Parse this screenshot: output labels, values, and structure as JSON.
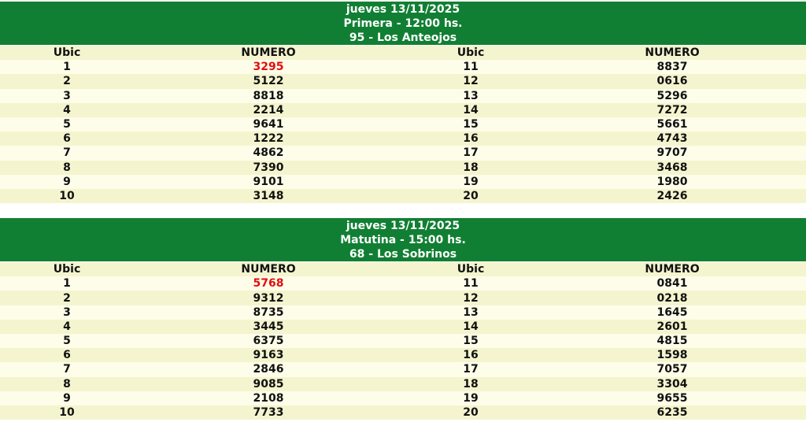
{
  "accent_color": "#117f33",
  "highlight_color": "#e01010",
  "columns": {
    "ubic": "Ubic",
    "numero": "NUMERO"
  },
  "draws": [
    {
      "date": "jueves 13/11/2025",
      "session": "Primera - 12:00 hs.",
      "head": "95 - Los Anteojos",
      "results": [
        {
          "ubic": "1",
          "numero": "3295"
        },
        {
          "ubic": "2",
          "numero": "5122"
        },
        {
          "ubic": "3",
          "numero": "8818"
        },
        {
          "ubic": "4",
          "numero": "2214"
        },
        {
          "ubic": "5",
          "numero": "9641"
        },
        {
          "ubic": "6",
          "numero": "1222"
        },
        {
          "ubic": "7",
          "numero": "4862"
        },
        {
          "ubic": "8",
          "numero": "7390"
        },
        {
          "ubic": "9",
          "numero": "9101"
        },
        {
          "ubic": "10",
          "numero": "3148"
        },
        {
          "ubic": "11",
          "numero": "8837"
        },
        {
          "ubic": "12",
          "numero": "0616"
        },
        {
          "ubic": "13",
          "numero": "5296"
        },
        {
          "ubic": "14",
          "numero": "7272"
        },
        {
          "ubic": "15",
          "numero": "5661"
        },
        {
          "ubic": "16",
          "numero": "4743"
        },
        {
          "ubic": "17",
          "numero": "9707"
        },
        {
          "ubic": "18",
          "numero": "3468"
        },
        {
          "ubic": "19",
          "numero": "1980"
        },
        {
          "ubic": "20",
          "numero": "2426"
        }
      ]
    },
    {
      "date": "jueves 13/11/2025",
      "session": "Matutina - 15:00 hs.",
      "head": "68 - Los Sobrinos",
      "results": [
        {
          "ubic": "1",
          "numero": "5768"
        },
        {
          "ubic": "2",
          "numero": "9312"
        },
        {
          "ubic": "3",
          "numero": "8735"
        },
        {
          "ubic": "4",
          "numero": "3445"
        },
        {
          "ubic": "5",
          "numero": "6375"
        },
        {
          "ubic": "6",
          "numero": "9163"
        },
        {
          "ubic": "7",
          "numero": "2846"
        },
        {
          "ubic": "8",
          "numero": "9085"
        },
        {
          "ubic": "9",
          "numero": "2108"
        },
        {
          "ubic": "10",
          "numero": "7733"
        },
        {
          "ubic": "11",
          "numero": "0841"
        },
        {
          "ubic": "12",
          "numero": "0218"
        },
        {
          "ubic": "13",
          "numero": "1645"
        },
        {
          "ubic": "14",
          "numero": "2601"
        },
        {
          "ubic": "15",
          "numero": "4815"
        },
        {
          "ubic": "16",
          "numero": "1598"
        },
        {
          "ubic": "17",
          "numero": "7057"
        },
        {
          "ubic": "18",
          "numero": "3304"
        },
        {
          "ubic": "19",
          "numero": "9655"
        },
        {
          "ubic": "20",
          "numero": "6235"
        }
      ]
    }
  ]
}
